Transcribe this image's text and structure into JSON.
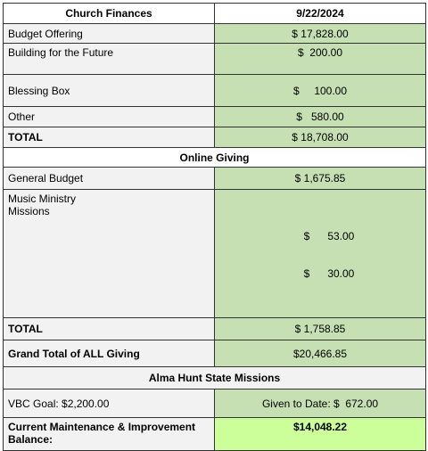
{
  "table": {
    "rows": [
      [
        "Church Finances",
        "9/22/2024"
      ],
      [
        "Budget Offering",
        "$ 17,828.00"
      ],
      [
        "Building for the Future",
        "$  200.00"
      ],
      [
        "Blessing Box",
        "$     100.00"
      ],
      [
        "Other",
        "$   580.00"
      ],
      [
        "TOTAL",
        "$ 18,708.00"
      ],
      [
        "Online Giving"
      ],
      [
        "General Budget",
        "$ 1,675.85"
      ],
      [
        [
          "Music Ministry",
          "Missions"
        ],
        [
          "$      53.00",
          "$      30.00"
        ]
      ],
      [
        "TOTAL",
        "$ 1,758.85"
      ],
      [
        "Grand Total of ALL Giving",
        "$20,466.85"
      ],
      [
        "Alma Hunt State Missions"
      ],
      [
        "VBC Goal: $2,200.00",
        "Given to Date: $  672.00"
      ],
      [
        "Current Maintenance & Improvement Balance:",
        "$14,048.22"
      ]
    ]
  }
}
